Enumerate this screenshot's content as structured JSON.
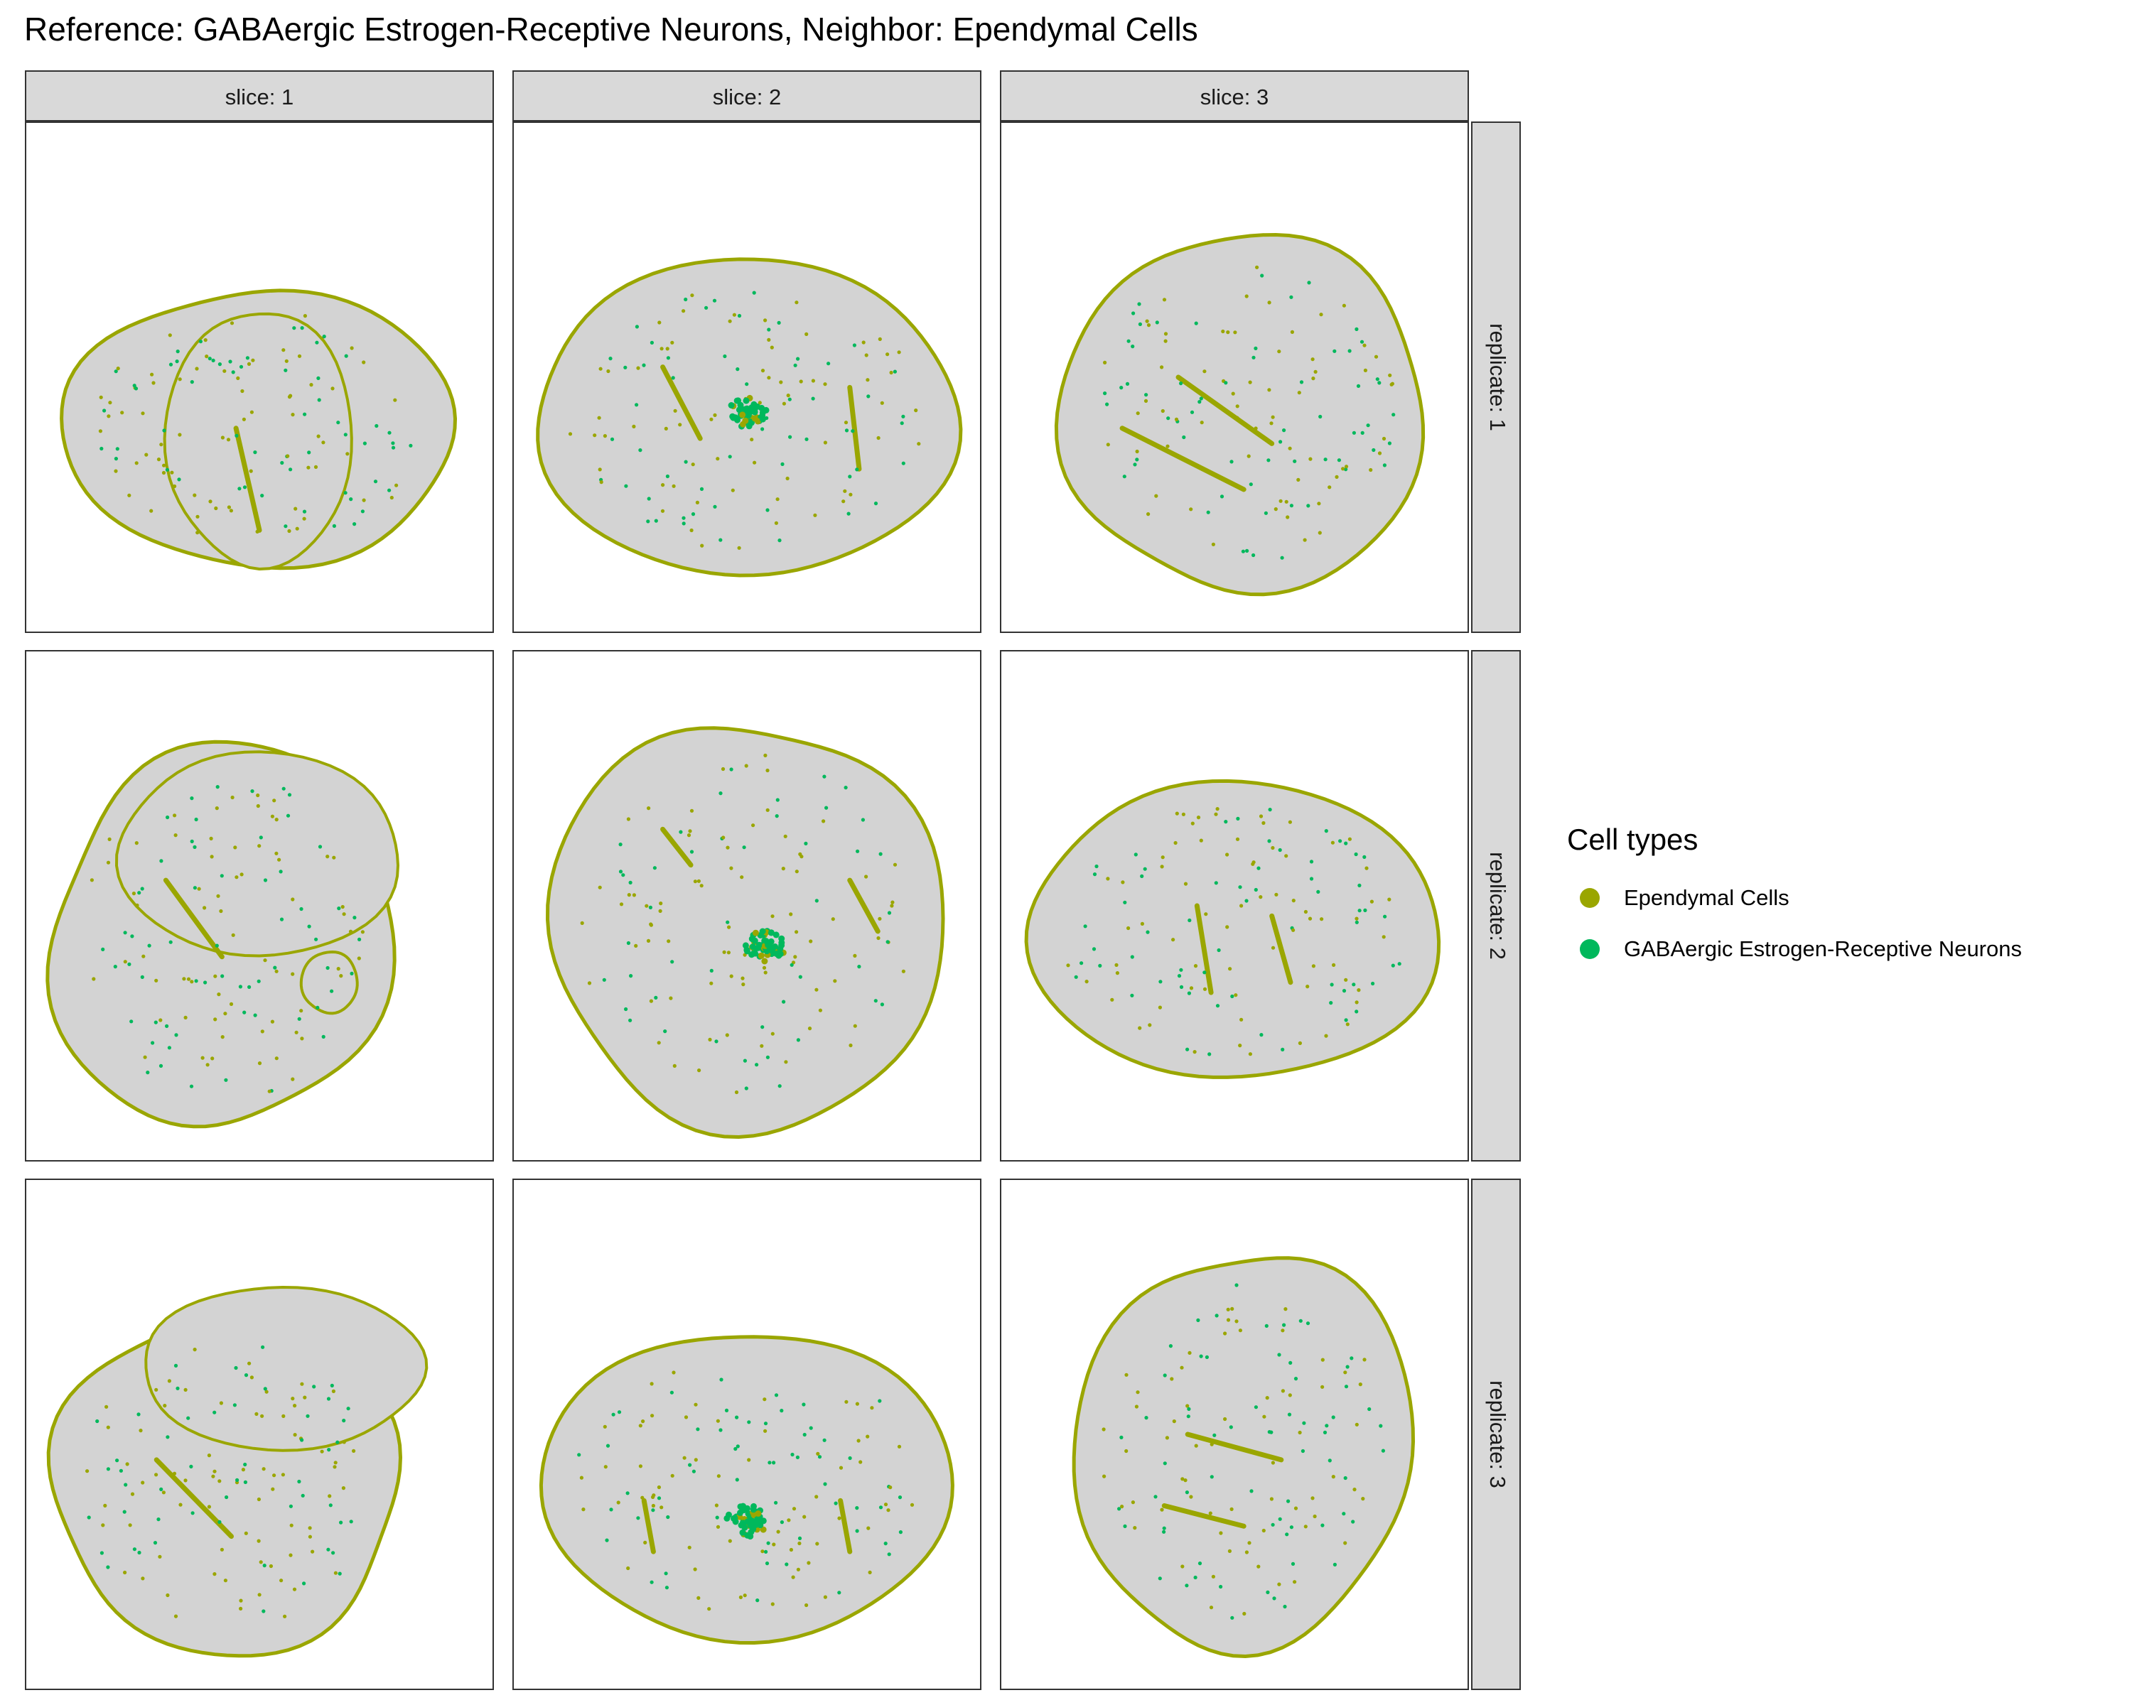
{
  "chart_data": {
    "type": "scatter",
    "title": "Reference: GABAergic Estrogen-Receptive Neurons, Neighbor: Ependymal Cells",
    "facet_columns": [
      "slice: 1",
      "slice: 2",
      "slice: 3"
    ],
    "facet_rows": [
      "replicate: 1",
      "replicate: 2",
      "replicate: 3"
    ],
    "legend": {
      "title": "Cell types",
      "placement": "right",
      "items": [
        {
          "label": "Ependymal Cells",
          "color": "#9AA600"
        },
        {
          "label": "GABAergic Estrogen-Receptive Neurons",
          "color": "#00B85C"
        }
      ]
    },
    "background_color": "#D3D3D3",
    "grid": false,
    "axes_shown": false
  }
}
